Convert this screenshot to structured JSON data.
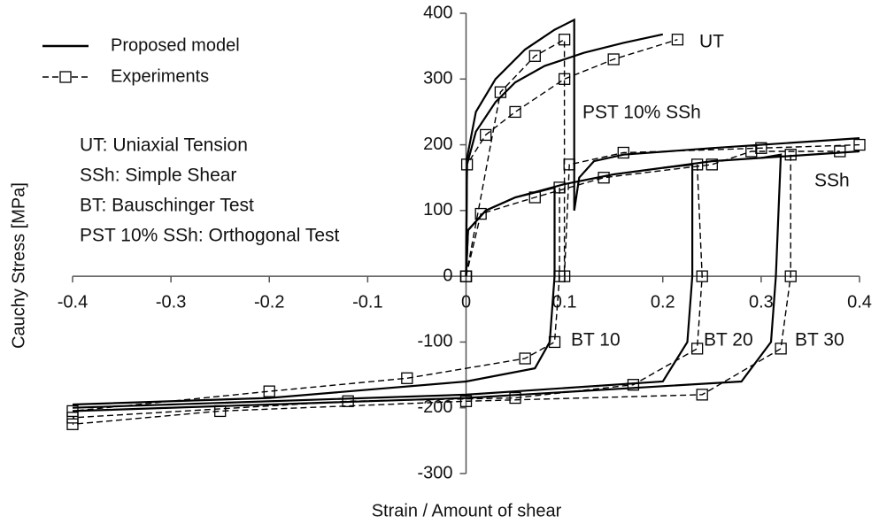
{
  "chart_data": {
    "type": "line",
    "x_label": "Strain / Amount of shear",
    "y_label": "Cauchy Stress [MPa]",
    "xlim": [
      -0.4,
      0.4
    ],
    "xticks": [
      -0.4,
      -0.3,
      -0.2,
      -0.1,
      0,
      0.1,
      0.2,
      0.3,
      0.4
    ],
    "ylim": [
      -300,
      400
    ],
    "yticks": [
      -300,
      -200,
      -100,
      0,
      100,
      200,
      300,
      400
    ],
    "grid": false,
    "legend": "upper left",
    "notes": [
      "UT: Uniaxial Tension",
      "SSh: Simple Shear",
      "BT: Bauschinger Test",
      "PST 10% SSh: Orthogonal Test"
    ],
    "annotations": [
      "UT",
      "PST 10% SSh",
      "SSh",
      "BT 10",
      "BT 20",
      "BT 30"
    ],
    "series": [
      {
        "name": "Proposed model",
        "color": "#000000",
        "dashed": false,
        "markers": false,
        "curves": [
          {
            "x": [
              0,
              0.001,
              0.01,
              0.03,
              0.05,
              0.08,
              0.12,
              0.16,
              0.2
            ],
            "values": [
              0,
              170,
              220,
              265,
              295,
              320,
              340,
              355,
              368
            ]
          },
          {
            "x": [
              0,
              0.001,
              0.01,
              0.03,
              0.06,
              0.09,
              0.11,
              0.11,
              0.115,
              0.13,
              0.16,
              0.25,
              0.4
            ],
            "values": [
              0,
              180,
              250,
              300,
              345,
              375,
              390,
              100,
              150,
              175,
              185,
              195,
              210
            ]
          },
          {
            "x": [
              0,
              0.002,
              0.02,
              0.05,
              0.1,
              0.15,
              0.2,
              0.25,
              0.3,
              0.4
            ],
            "values": [
              0,
              70,
              100,
              120,
              140,
              155,
              165,
              175,
              180,
              190
            ]
          },
          {
            "x": [
              0,
              0.002,
              0.02,
              0.05,
              0.09,
              0.09,
              0.085,
              0.07,
              0,
              -0.2,
              -0.4
            ],
            "values": [
              0,
              70,
              100,
              120,
              135,
              0,
              -100,
              -140,
              -160,
              -185,
              -195
            ]
          },
          {
            "x": [
              0.2,
              0.23,
              0.23,
              0.225,
              0.2,
              0,
              -0.4
            ],
            "values": [
              165,
              170,
              0,
              -100,
              -160,
              -180,
              -200
            ]
          },
          {
            "x": [
              0.3,
              0.32,
              0.315,
              0.31,
              0.28,
              0,
              -0.4
            ],
            "values": [
              180,
              185,
              0,
              -100,
              -160,
              -185,
              -205
            ]
          }
        ]
      },
      {
        "name": "Experiments",
        "color": "#000000",
        "dashed": true,
        "markers": true,
        "curves": [
          {
            "x": [
              0,
              0.001,
              0.02,
              0.05,
              0.1,
              0.15,
              0.215
            ],
            "values": [
              0,
              170,
              215,
              250,
              300,
              330,
              360
            ]
          },
          {
            "x": [
              0,
              0.035,
              0.07,
              0.1,
              0.1,
              0.105,
              0.16,
              0.3,
              0.4
            ],
            "values": [
              0,
              280,
              335,
              360,
              0,
              170,
              188,
              195,
              200
            ]
          },
          {
            "x": [
              0,
              0.015,
              0.07,
              0.14,
              0.25,
              0.29,
              0.38
            ],
            "values": [
              0,
              95,
              120,
              150,
              170,
              190,
              190
            ]
          },
          {
            "x": [
              0.095,
              0.095,
              0.09,
              0.06,
              -0.06,
              -0.2,
              -0.4
            ],
            "values": [
              135,
              0,
              -100,
              -125,
              -155,
              -175,
              -205
            ]
          },
          {
            "x": [
              0.235,
              0.24,
              0.235,
              0.17,
              0.05,
              -0.12,
              -0.4
            ],
            "values": [
              170,
              0,
              -110,
              -165,
              -185,
              -190,
              -215
            ]
          },
          {
            "x": [
              0.33,
              0.33,
              0.32,
              0.24,
              0,
              -0.25,
              -0.4
            ],
            "values": [
              185,
              0,
              -110,
              -180,
              -190,
              -205,
              -225
            ]
          }
        ]
      }
    ]
  }
}
